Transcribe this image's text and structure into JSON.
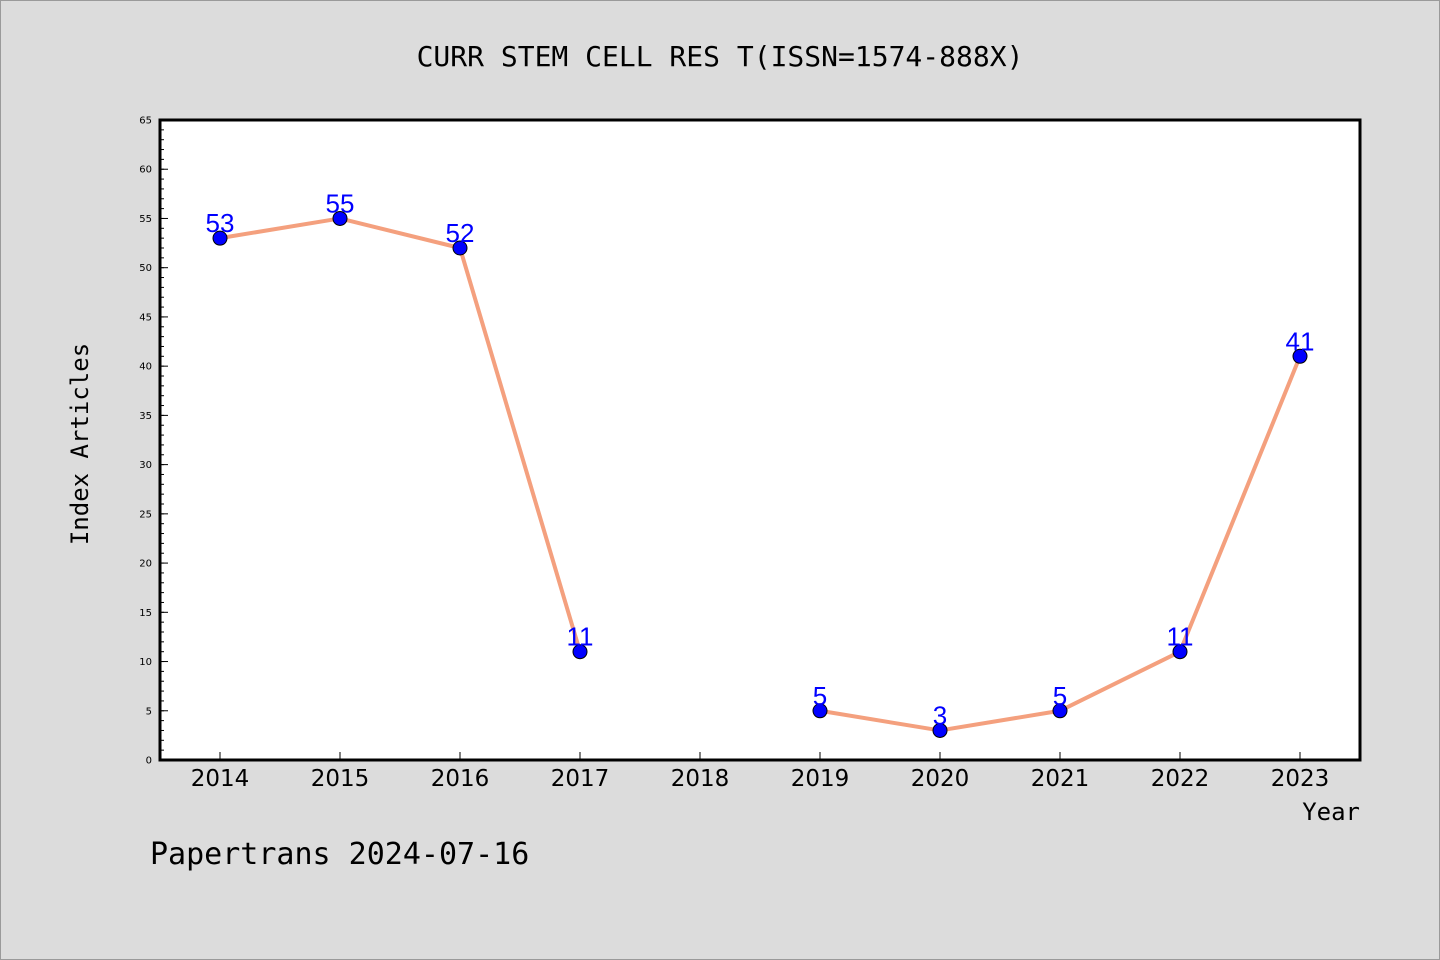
{
  "footer_text": "Papertrans 2024-07-16",
  "chart_data": {
    "type": "line",
    "title": "CURR STEM CELL RES T(ISSN=1574-888X)",
    "xlabel": "Year",
    "ylabel": "Index Articles",
    "categories": [
      "2014",
      "2015",
      "2016",
      "2017",
      "2018",
      "2019",
      "2020",
      "2021",
      "2022",
      "2023"
    ],
    "values": [
      53,
      55,
      52,
      11,
      null,
      5,
      3,
      5,
      11,
      41
    ],
    "ylim": [
      0,
      65
    ],
    "yticks": [
      0,
      5,
      10,
      15,
      20,
      25,
      30,
      35,
      40,
      45,
      50,
      55,
      60,
      65
    ],
    "grid": false,
    "line_color": "#f4a07e",
    "marker_color": "#0000ff",
    "label_color": "#0000ff"
  }
}
